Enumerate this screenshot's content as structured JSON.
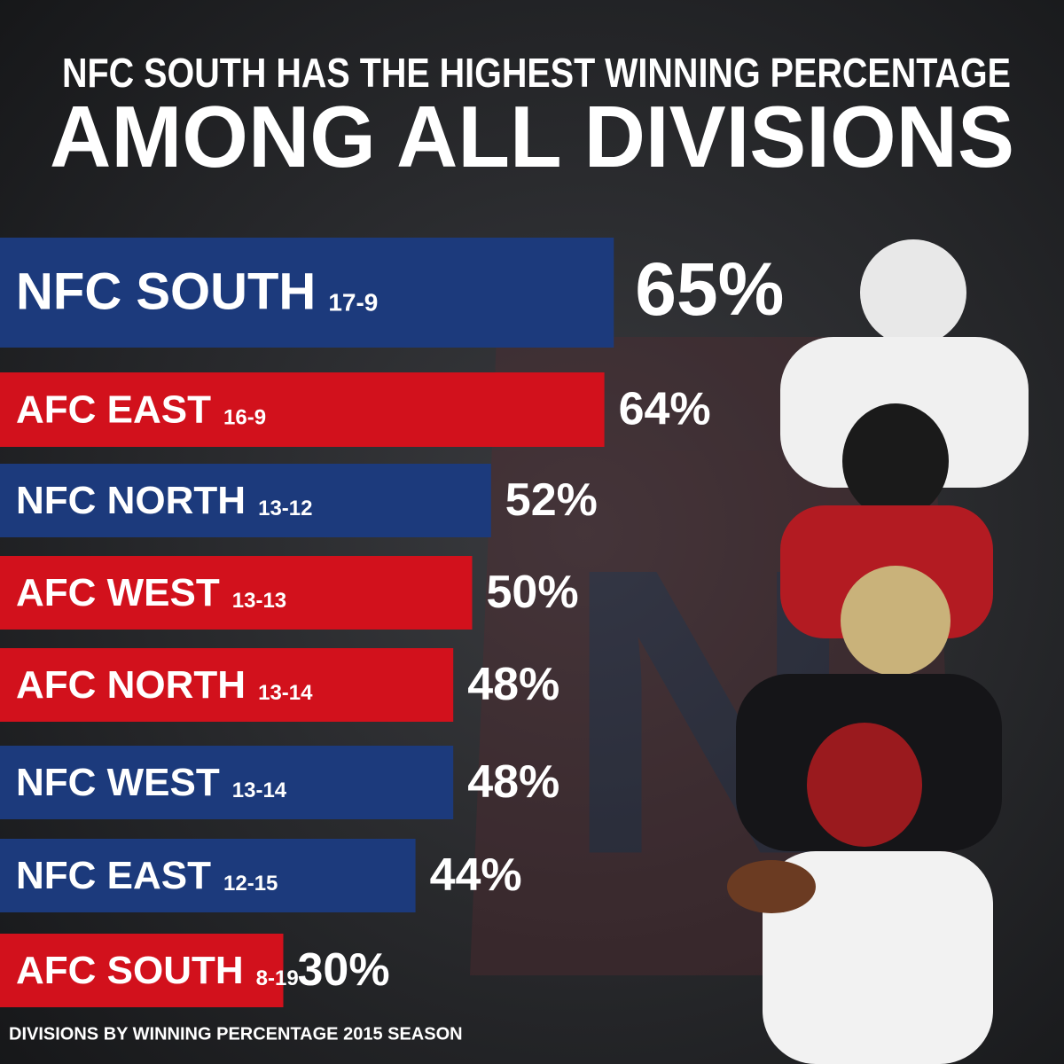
{
  "chart_data": {
    "type": "bar",
    "title": "NFC SOUTH HAS THE HIGHEST WINNING PERCENTAGE",
    "subtitle": "AMONG ALL DIVISIONS",
    "categories": [
      "NFC SOUTH",
      "AFC EAST",
      "NFC NORTH",
      "AFC WEST",
      "AFC NORTH",
      "NFC WEST",
      "NFC EAST",
      "AFC SOUTH"
    ],
    "records": [
      "17-9",
      "16-9",
      "13-12",
      "13-13",
      "13-14",
      "13-14",
      "12-15",
      "8-19"
    ],
    "values": [
      65,
      64,
      52,
      50,
      48,
      48,
      44,
      30
    ],
    "value_labels": [
      "65%",
      "64%",
      "52%",
      "50%",
      "48%",
      "48%",
      "44%",
      "30%"
    ],
    "colors": [
      "#1c3a7c",
      "#d2111c",
      "#1c3a7c",
      "#d2111c",
      "#d2111c",
      "#1c3a7c",
      "#1c3a7c",
      "#d2111c"
    ],
    "footnote": "DIVISIONS BY WINNING PERCENTAGE 2015 SEASON"
  }
}
